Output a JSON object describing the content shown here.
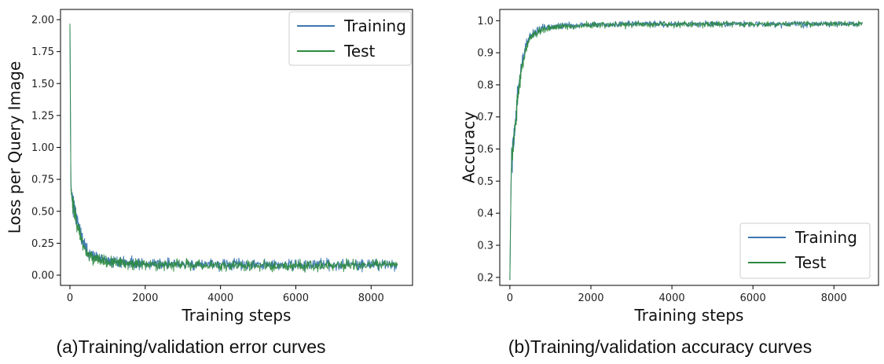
{
  "colors": {
    "training": "#3a78b0",
    "test": "#2c8a3e"
  },
  "chart_data": [
    {
      "type": "line",
      "caption": "(a)Training/validation error curves",
      "xlabel": "Training steps",
      "ylabel": "Loss per Query Image",
      "xlim": [
        -250,
        9100
      ],
      "ylim": [
        -0.08,
        2.08
      ],
      "xticks": [
        0,
        2000,
        4000,
        6000,
        8000
      ],
      "xtick_labels": [
        "0",
        "2000",
        "4000",
        "6000",
        "8000"
      ],
      "yticks": [
        0.0,
        0.25,
        0.5,
        0.75,
        1.0,
        1.25,
        1.5,
        1.75,
        2.0
      ],
      "ytick_labels": [
        "0.00",
        "0.25",
        "0.50",
        "0.75",
        "1.00",
        "1.25",
        "1.50",
        "1.75",
        "2.00"
      ],
      "legend_position": "top-right",
      "grid": false,
      "series": [
        {
          "name": "Training",
          "x": [
            0,
            25,
            50,
            100,
            150,
            200,
            300,
            400,
            500,
            700,
            1000,
            1500,
            2000,
            3000,
            4000,
            5000,
            6000,
            7000,
            8000,
            8700
          ],
          "y": [
            1.98,
            0.75,
            0.62,
            0.55,
            0.48,
            0.42,
            0.3,
            0.22,
            0.17,
            0.13,
            0.11,
            0.1,
            0.09,
            0.085,
            0.085,
            0.08,
            0.08,
            0.085,
            0.085,
            0.085
          ]
        },
        {
          "name": "Test",
          "x": [
            0,
            25,
            50,
            100,
            150,
            200,
            300,
            400,
            500,
            700,
            1000,
            1500,
            2000,
            3000,
            4000,
            5000,
            6000,
            7000,
            8000,
            8700
          ],
          "y": [
            1.98,
            0.72,
            0.6,
            0.52,
            0.45,
            0.4,
            0.28,
            0.2,
            0.16,
            0.12,
            0.1,
            0.09,
            0.085,
            0.08,
            0.075,
            0.075,
            0.075,
            0.075,
            0.08,
            0.08
          ]
        }
      ]
    },
    {
      "type": "line",
      "caption": "(b)Training/validation accuracy curves",
      "xlabel": "Training steps",
      "ylabel": "Accuracy",
      "xlim": [
        -250,
        9100
      ],
      "ylim": [
        0.175,
        1.035
      ],
      "xticks": [
        0,
        2000,
        4000,
        6000,
        8000
      ],
      "xtick_labels": [
        "0",
        "2000",
        "4000",
        "6000",
        "8000"
      ],
      "yticks": [
        0.2,
        0.3,
        0.4,
        0.5,
        0.6,
        0.7,
        0.8,
        0.9,
        1.0
      ],
      "ytick_labels": [
        "0.2",
        "0.3",
        "0.4",
        "0.5",
        "0.6",
        "0.7",
        "0.8",
        "0.9",
        "1.0"
      ],
      "legend_position": "bottom-right",
      "grid": false,
      "series": [
        {
          "name": "Training",
          "x": [
            0,
            10,
            30,
            50,
            100,
            150,
            200,
            300,
            400,
            500,
            600,
            800,
            1000,
            1500,
            2000,
            3000,
            4000,
            5000,
            6000,
            7000,
            8000,
            8700
          ],
          "y": [
            0.2,
            0.3,
            0.5,
            0.57,
            0.64,
            0.7,
            0.78,
            0.87,
            0.92,
            0.95,
            0.965,
            0.975,
            0.98,
            0.985,
            0.988,
            0.99,
            0.99,
            0.99,
            0.99,
            0.99,
            0.99,
            0.99
          ]
        },
        {
          "name": "Test",
          "x": [
            0,
            10,
            30,
            50,
            100,
            150,
            200,
            300,
            400,
            500,
            600,
            800,
            1000,
            1500,
            2000,
            3000,
            4000,
            5000,
            6000,
            7000,
            8000,
            8700
          ],
          "y": [
            0.2,
            0.31,
            0.51,
            0.58,
            0.63,
            0.69,
            0.77,
            0.86,
            0.91,
            0.945,
            0.96,
            0.972,
            0.978,
            0.983,
            0.986,
            0.988,
            0.989,
            0.99,
            0.99,
            0.99,
            0.99,
            0.99
          ]
        }
      ]
    }
  ]
}
